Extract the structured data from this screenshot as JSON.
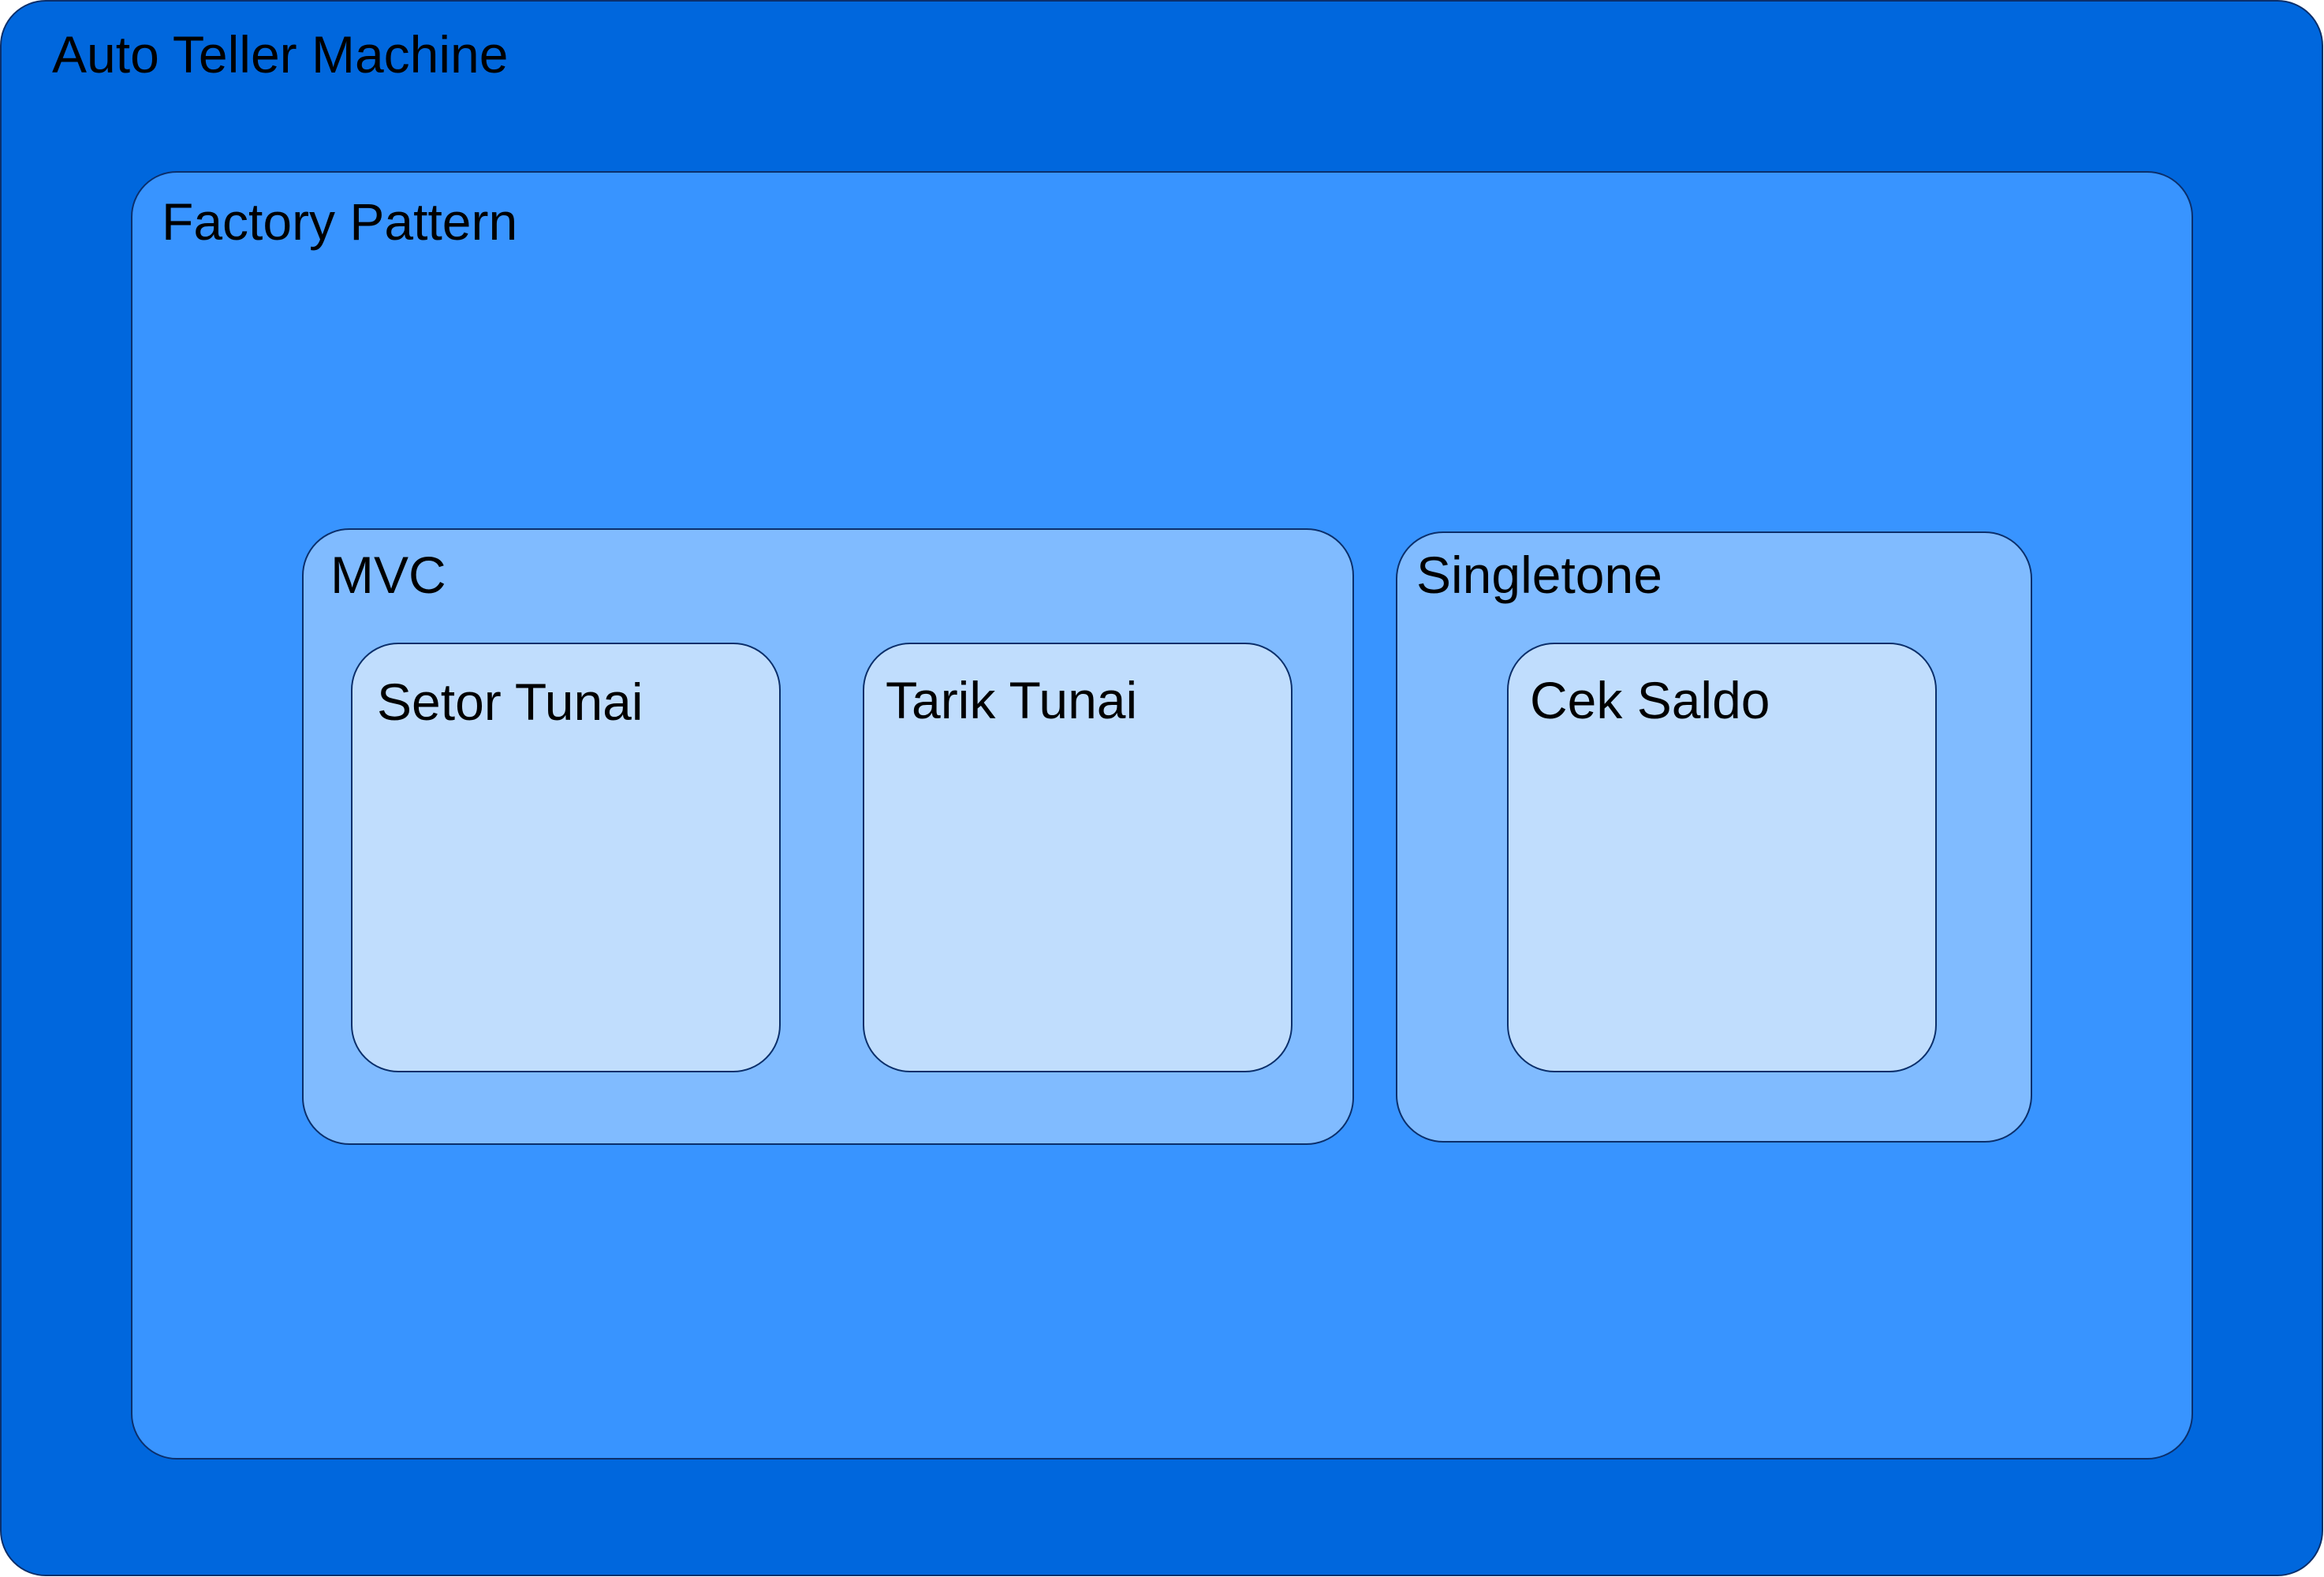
{
  "colors": {
    "outer_fill": "#0067dd",
    "factory_fill": "#3894ff",
    "group_fill": "#80bbff",
    "feature_fill": "#c0ddfd",
    "border": "#0b2f6b",
    "text": "#000000"
  },
  "diagram": {
    "outer": {
      "label": "Auto Teller Machine"
    },
    "factory": {
      "label": "Factory Pattern"
    },
    "mvc": {
      "label": "MVC",
      "features": [
        {
          "label": "Setor Tunai"
        },
        {
          "label": "Tarik Tunai"
        }
      ]
    },
    "singletone": {
      "label": "Singletone",
      "features": [
        {
          "label": "Cek Saldo"
        }
      ]
    }
  }
}
